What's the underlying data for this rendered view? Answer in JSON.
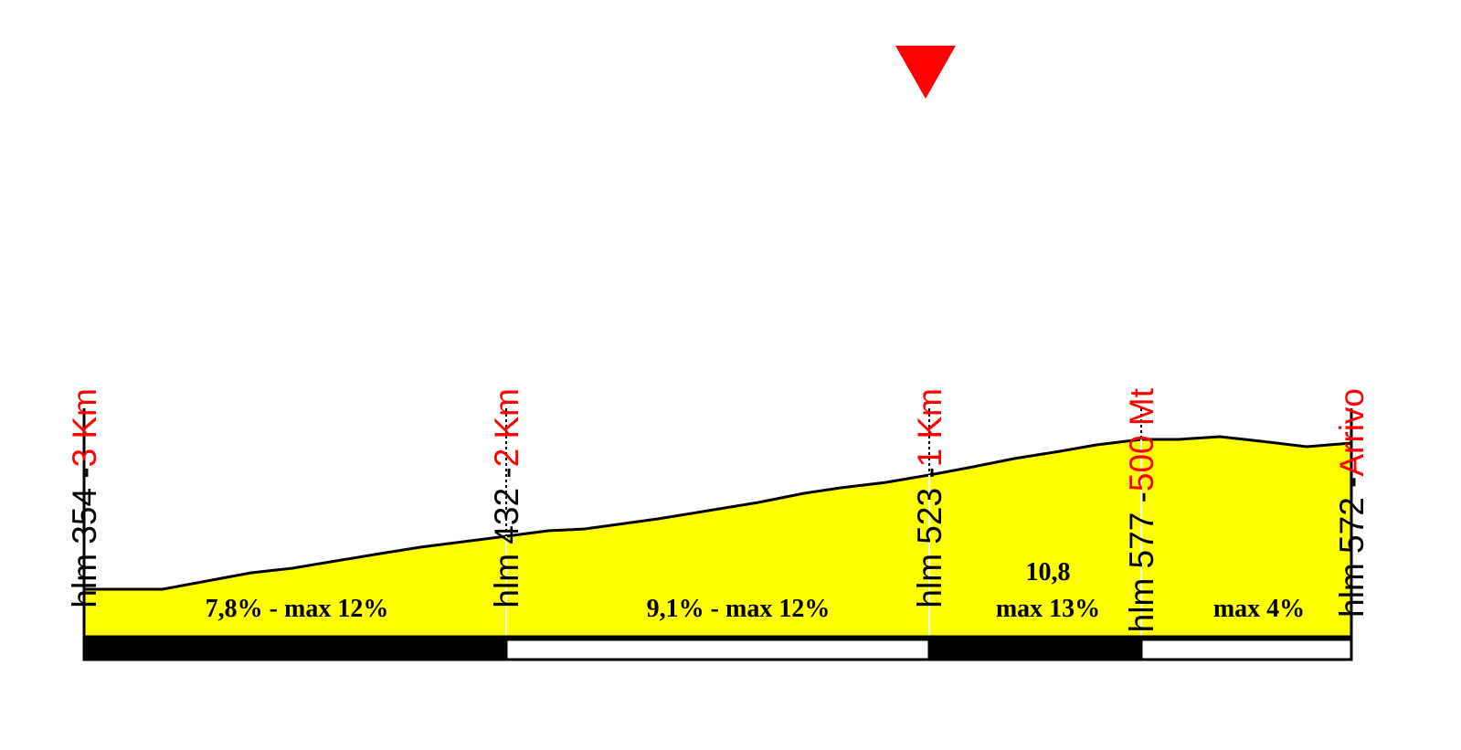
{
  "markers": [
    {
      "elevation": "hlm 354 -",
      "distance": "3 Km"
    },
    {
      "elevation": "hlm 432 -",
      "distance": "2 Km"
    },
    {
      "elevation": "hlm 523 -",
      "distance": "1 Km"
    },
    {
      "elevation": "hlm 577 -",
      "distance": "500 Mt"
    },
    {
      "elevation": "hlm 572 -",
      "distance": "Arrivo"
    }
  ],
  "segments": [
    {
      "lines": [
        "7,8% - max 12%"
      ]
    },
    {
      "lines": [
        "9,1% - max 12%"
      ]
    },
    {
      "lines": [
        "10,8",
        "max 13%"
      ]
    },
    {
      "lines": [
        "max 4%"
      ]
    }
  ]
}
